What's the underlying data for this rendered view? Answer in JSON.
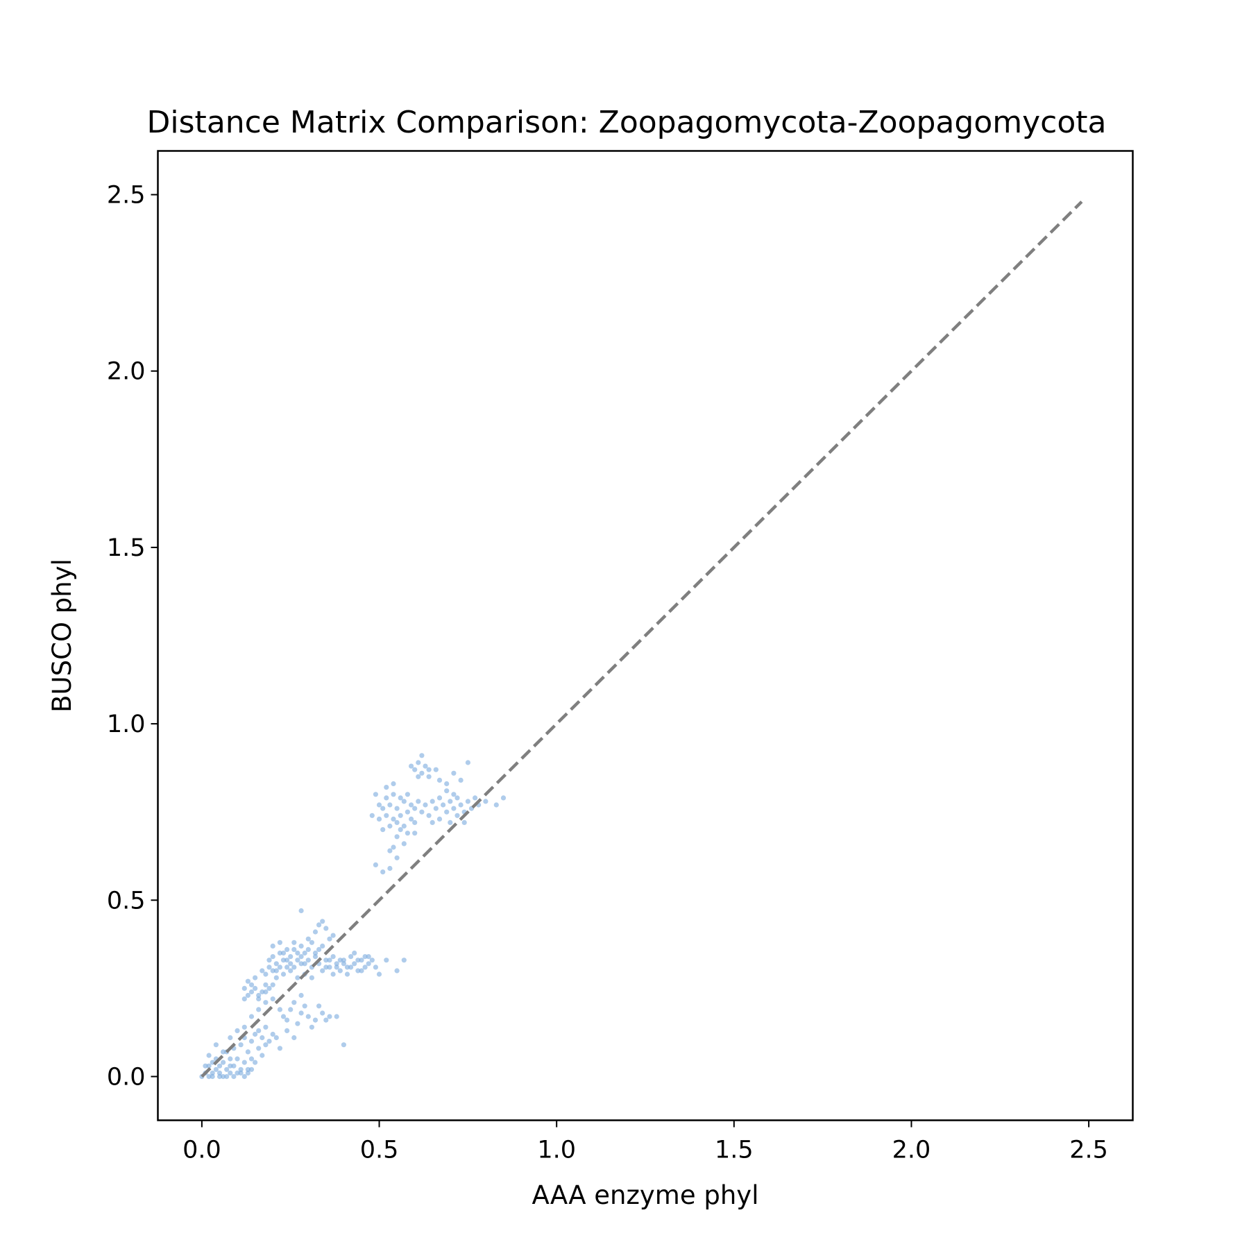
{
  "chart_data": {
    "type": "scatter",
    "title": "Distance Matrix Comparison: Zoopagomycota-Zoopagomycota",
    "xlabel": "AAA enzyme phyl",
    "ylabel": "BUSCO phyl",
    "xlim": [
      -0.124,
      2.624
    ],
    "ylim": [
      -0.124,
      2.624
    ],
    "xticks": [
      0.0,
      0.5,
      1.0,
      1.5,
      2.0,
      2.5
    ],
    "yticks": [
      0.0,
      0.5,
      1.0,
      1.5,
      2.0,
      2.5
    ],
    "xtick_labels": [
      "0.0",
      "0.5",
      "1.0",
      "1.5",
      "2.0",
      "2.5"
    ],
    "ytick_labels": [
      "0.0",
      "0.5",
      "1.0",
      "1.5",
      "2.0",
      "2.5"
    ],
    "grid": false,
    "point_color": "#7aaadd",
    "point_opacity": 0.6,
    "reference_line": {
      "x": [
        0.0,
        2.48
      ],
      "y": [
        0.0,
        2.48
      ],
      "style": "dashed",
      "color": "#7f7f7f"
    },
    "series": [
      {
        "points": [
          [
            0.0,
            0.0
          ],
          [
            0.01,
            0.01
          ],
          [
            0.02,
            0.0
          ],
          [
            0.02,
            0.03
          ],
          [
            0.03,
            0.01
          ],
          [
            0.03,
            0.04
          ],
          [
            0.04,
            0.02
          ],
          [
            0.04,
            0.05
          ],
          [
            0.05,
            0.01
          ],
          [
            0.05,
            0.03
          ],
          [
            0.06,
            0.0
          ],
          [
            0.06,
            0.04
          ],
          [
            0.07,
            0.02
          ],
          [
            0.07,
            0.07
          ],
          [
            0.08,
            0.01
          ],
          [
            0.08,
            0.05
          ],
          [
            0.09,
            0.03
          ],
          [
            0.09,
            0.08
          ],
          [
            0.1,
            0.01
          ],
          [
            0.1,
            0.05
          ],
          [
            0.11,
            0.02
          ],
          [
            0.11,
            0.09
          ],
          [
            0.12,
            0.04
          ],
          [
            0.12,
            0.11
          ],
          [
            0.13,
            0.02
          ],
          [
            0.13,
            0.07
          ],
          [
            0.14,
            0.05
          ],
          [
            0.14,
            0.1
          ],
          [
            0.15,
            0.04
          ],
          [
            0.15,
            0.12
          ],
          [
            0.16,
            0.08
          ],
          [
            0.16,
            0.13
          ],
          [
            0.17,
            0.06
          ],
          [
            0.17,
            0.11
          ],
          [
            0.18,
            0.09
          ],
          [
            0.18,
            0.14
          ],
          [
            0.19,
            0.1
          ],
          [
            0.2,
            0.12
          ],
          [
            0.21,
            0.11
          ],
          [
            0.22,
            0.08
          ],
          [
            0.02,
            0.06
          ],
          [
            0.04,
            0.09
          ],
          [
            0.06,
            0.07
          ],
          [
            0.08,
            0.11
          ],
          [
            0.1,
            0.13
          ],
          [
            0.12,
            0.14
          ],
          [
            0.14,
            0.17
          ],
          [
            0.16,
            0.19
          ],
          [
            0.18,
            0.21
          ],
          [
            0.2,
            0.22
          ],
          [
            0.03,
            0.0
          ],
          [
            0.05,
            0.0
          ],
          [
            0.07,
            0.0
          ],
          [
            0.09,
            0.0
          ],
          [
            0.11,
            0.01
          ],
          [
            0.13,
            0.01
          ],
          [
            0.01,
            0.03
          ],
          [
            0.08,
            0.03
          ],
          [
            0.12,
            0.0
          ],
          [
            0.14,
            0.02
          ],
          [
            0.23,
            0.17
          ],
          [
            0.25,
            0.19
          ],
          [
            0.27,
            0.15
          ],
          [
            0.24,
            0.13
          ],
          [
            0.26,
            0.21
          ],
          [
            0.28,
            0.18
          ],
          [
            0.3,
            0.17
          ],
          [
            0.32,
            0.16
          ],
          [
            0.34,
            0.18
          ],
          [
            0.36,
            0.17
          ],
          [
            0.22,
            0.19
          ],
          [
            0.29,
            0.2
          ],
          [
            0.31,
            0.14
          ],
          [
            0.33,
            0.2
          ],
          [
            0.35,
            0.16
          ],
          [
            0.38,
            0.17
          ],
          [
            0.4,
            0.09
          ],
          [
            0.26,
            0.11
          ],
          [
            0.28,
            0.23
          ],
          [
            0.24,
            0.16
          ],
          [
            0.12,
            0.25
          ],
          [
            0.13,
            0.23
          ],
          [
            0.14,
            0.24
          ],
          [
            0.15,
            0.25
          ],
          [
            0.16,
            0.22
          ],
          [
            0.17,
            0.24
          ],
          [
            0.18,
            0.26
          ],
          [
            0.19,
            0.25
          ],
          [
            0.13,
            0.27
          ],
          [
            0.15,
            0.28
          ],
          [
            0.17,
            0.3
          ],
          [
            0.18,
            0.29
          ],
          [
            0.19,
            0.31
          ],
          [
            0.2,
            0.3
          ],
          [
            0.16,
            0.23
          ],
          [
            0.14,
            0.26
          ],
          [
            0.12,
            0.22
          ],
          [
            0.18,
            0.24
          ],
          [
            0.2,
            0.26
          ],
          [
            0.21,
            0.28
          ],
          [
            0.19,
            0.33
          ],
          [
            0.2,
            0.34
          ],
          [
            0.21,
            0.32
          ],
          [
            0.22,
            0.35
          ],
          [
            0.23,
            0.33
          ],
          [
            0.24,
            0.31
          ],
          [
            0.25,
            0.34
          ],
          [
            0.26,
            0.36
          ],
          [
            0.27,
            0.33
          ],
          [
            0.28,
            0.32
          ],
          [
            0.29,
            0.35
          ],
          [
            0.3,
            0.33
          ],
          [
            0.31,
            0.31
          ],
          [
            0.32,
            0.34
          ],
          [
            0.33,
            0.32
          ],
          [
            0.34,
            0.3
          ],
          [
            0.35,
            0.33
          ],
          [
            0.36,
            0.31
          ],
          [
            0.37,
            0.34
          ],
          [
            0.38,
            0.32
          ],
          [
            0.39,
            0.3
          ],
          [
            0.4,
            0.33
          ],
          [
            0.41,
            0.31
          ],
          [
            0.42,
            0.34
          ],
          [
            0.43,
            0.32
          ],
          [
            0.44,
            0.3
          ],
          [
            0.45,
            0.33
          ],
          [
            0.46,
            0.31
          ],
          [
            0.47,
            0.34
          ],
          [
            0.48,
            0.33
          ],
          [
            0.2,
            0.37
          ],
          [
            0.22,
            0.38
          ],
          [
            0.24,
            0.36
          ],
          [
            0.26,
            0.38
          ],
          [
            0.28,
            0.37
          ],
          [
            0.23,
            0.29
          ],
          [
            0.25,
            0.3
          ],
          [
            0.27,
            0.28
          ],
          [
            0.29,
            0.29
          ],
          [
            0.31,
            0.28
          ],
          [
            0.21,
            0.3
          ],
          [
            0.22,
            0.31
          ],
          [
            0.24,
            0.33
          ],
          [
            0.25,
            0.32
          ],
          [
            0.26,
            0.31
          ],
          [
            0.27,
            0.35
          ],
          [
            0.28,
            0.34
          ],
          [
            0.29,
            0.32
          ],
          [
            0.3,
            0.36
          ],
          [
            0.32,
            0.35
          ],
          [
            0.33,
            0.36
          ],
          [
            0.34,
            0.37
          ],
          [
            0.35,
            0.31
          ],
          [
            0.36,
            0.33
          ],
          [
            0.37,
            0.29
          ],
          [
            0.38,
            0.31
          ],
          [
            0.39,
            0.33
          ],
          [
            0.4,
            0.32
          ],
          [
            0.41,
            0.29
          ],
          [
            0.42,
            0.31
          ],
          [
            0.43,
            0.35
          ],
          [
            0.44,
            0.33
          ],
          [
            0.45,
            0.3
          ],
          [
            0.46,
            0.34
          ],
          [
            0.47,
            0.32
          ],
          [
            0.49,
            0.31
          ],
          [
            0.5,
            0.29
          ],
          [
            0.52,
            0.33
          ],
          [
            0.28,
            0.47
          ],
          [
            0.33,
            0.43
          ],
          [
            0.34,
            0.44
          ],
          [
            0.35,
            0.42
          ],
          [
            0.36,
            0.39
          ],
          [
            0.37,
            0.4
          ],
          [
            0.3,
            0.39
          ],
          [
            0.32,
            0.41
          ],
          [
            0.55,
            0.3
          ],
          [
            0.57,
            0.33
          ],
          [
            0.23,
            0.35
          ],
          [
            0.31,
            0.38
          ],
          [
            0.51,
            0.76
          ],
          [
            0.52,
            0.74
          ],
          [
            0.53,
            0.77
          ],
          [
            0.54,
            0.73
          ],
          [
            0.55,
            0.76
          ],
          [
            0.56,
            0.74
          ],
          [
            0.57,
            0.78
          ],
          [
            0.58,
            0.75
          ],
          [
            0.59,
            0.73
          ],
          [
            0.6,
            0.76
          ],
          [
            0.52,
            0.79
          ],
          [
            0.53,
            0.71
          ],
          [
            0.54,
            0.8
          ],
          [
            0.55,
            0.72
          ],
          [
            0.56,
            0.79
          ],
          [
            0.57,
            0.71
          ],
          [
            0.58,
            0.8
          ],
          [
            0.59,
            0.77
          ],
          [
            0.6,
            0.72
          ],
          [
            0.61,
            0.78
          ],
          [
            0.62,
            0.75
          ],
          [
            0.63,
            0.77
          ],
          [
            0.64,
            0.74
          ],
          [
            0.65,
            0.78
          ],
          [
            0.66,
            0.76
          ],
          [
            0.67,
            0.79
          ],
          [
            0.68,
            0.77
          ],
          [
            0.69,
            0.75
          ],
          [
            0.7,
            0.78
          ],
          [
            0.71,
            0.76
          ],
          [
            0.72,
            0.79
          ],
          [
            0.73,
            0.77
          ],
          [
            0.74,
            0.75
          ],
          [
            0.75,
            0.78
          ],
          [
            0.76,
            0.76
          ],
          [
            0.77,
            0.79
          ],
          [
            0.78,
            0.77
          ],
          [
            0.8,
            0.78
          ],
          [
            0.83,
            0.77
          ],
          [
            0.85,
            0.79
          ],
          [
            0.52,
            0.82
          ],
          [
            0.54,
            0.83
          ],
          [
            0.55,
            0.68
          ],
          [
            0.56,
            0.7
          ],
          [
            0.57,
            0.66
          ],
          [
            0.54,
            0.65
          ],
          [
            0.55,
            0.62
          ],
          [
            0.53,
            0.64
          ],
          [
            0.58,
            0.69
          ],
          [
            0.6,
            0.69
          ],
          [
            0.6,
            0.87
          ],
          [
            0.61,
            0.89
          ],
          [
            0.62,
            0.86
          ],
          [
            0.63,
            0.88
          ],
          [
            0.64,
            0.87
          ],
          [
            0.62,
            0.91
          ],
          [
            0.61,
            0.85
          ],
          [
            0.64,
            0.85
          ],
          [
            0.66,
            0.87
          ],
          [
            0.59,
            0.88
          ],
          [
            0.67,
            0.84
          ],
          [
            0.69,
            0.83
          ],
          [
            0.71,
            0.86
          ],
          [
            0.73,
            0.84
          ],
          [
            0.75,
            0.89
          ],
          [
            0.49,
            0.8
          ],
          [
            0.5,
            0.77
          ],
          [
            0.48,
            0.74
          ],
          [
            0.5,
            0.73
          ],
          [
            0.51,
            0.7
          ],
          [
            0.49,
            0.6
          ],
          [
            0.53,
            0.59
          ],
          [
            0.51,
            0.58
          ],
          [
            0.65,
            0.72
          ],
          [
            0.67,
            0.73
          ],
          [
            0.7,
            0.72
          ],
          [
            0.72,
            0.74
          ],
          [
            0.74,
            0.72
          ],
          [
            0.69,
            0.81
          ],
          [
            0.71,
            0.8
          ]
        ]
      }
    ]
  }
}
